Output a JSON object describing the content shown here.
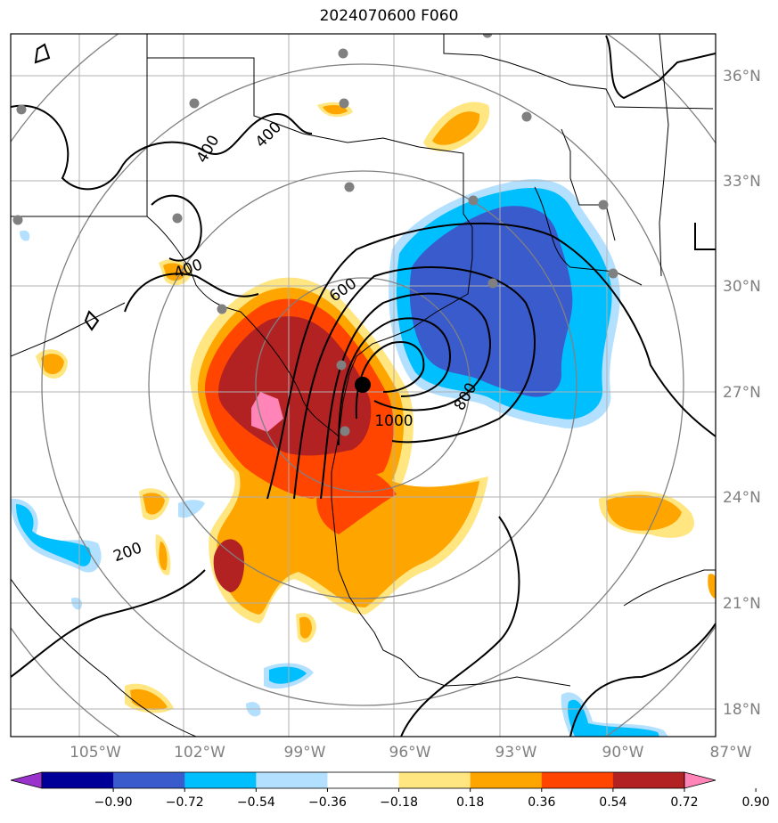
{
  "title": "2024070600 F060",
  "lat_labels": [
    "36°N",
    "33°N",
    "30°N",
    "27°N",
    "24°N",
    "21°N",
    "18°N"
  ],
  "lon_labels": [
    "105°W",
    "102°W",
    "99°W",
    "96°W",
    "93°W",
    "90°W",
    "87°W"
  ],
  "contour_labels": [
    "400",
    "400",
    "400",
    "600",
    "800",
    "1000",
    "200"
  ],
  "colorbar": {
    "ticks": [
      "−0.90",
      "−0.72",
      "−0.54",
      "−0.36",
      "−0.18",
      "0.18",
      "0.36",
      "0.54",
      "0.72",
      "0.90"
    ],
    "colors": [
      "#9933cc",
      "#000099",
      "#3a5bcc",
      "#00bfff",
      "#b3e0ff",
      "#ffffff",
      "#ffe680",
      "#ffa500",
      "#ff4500",
      "#b22222",
      "#ff85b8"
    ]
  },
  "colors": {
    "pos_light": "#ffe680",
    "pos_orange": "#ffa500",
    "pos_redorange": "#ff4500",
    "pos_darkred": "#b22222",
    "pos_pink": "#ff85b8",
    "neg_light": "#b3e0ff",
    "neg_cyan": "#00bfff",
    "neg_blue": "#3a5bcc",
    "grid": "#b0b0b0",
    "range_rings": "#808080"
  },
  "markers": {
    "storm_center": "storm-center-dot",
    "stations": "gray-station-dots"
  }
}
